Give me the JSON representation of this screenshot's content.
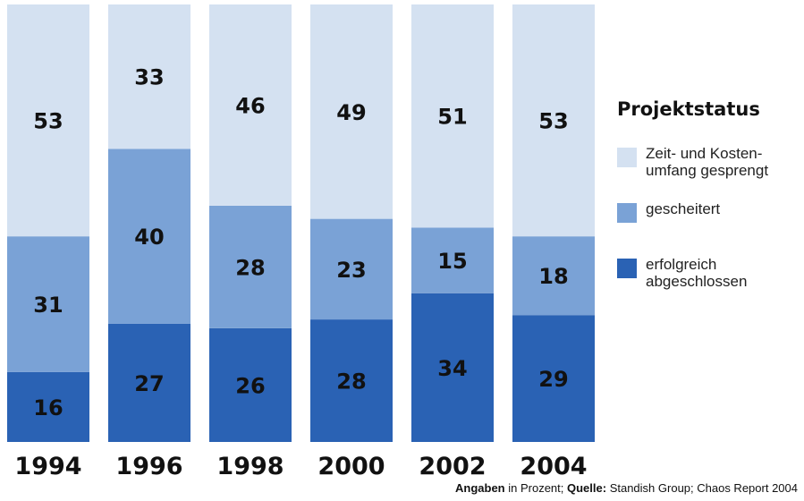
{
  "chart_data": {
    "type": "bar",
    "stacked": true,
    "orientation": "vertical",
    "categories": [
      "1994",
      "1996",
      "1998",
      "2000",
      "2002",
      "2004"
    ],
    "series": [
      {
        "name": "erfolgreich abgeschlossen",
        "color": "#2a62b4",
        "values": [
          16,
          27,
          26,
          28,
          34,
          29
        ]
      },
      {
        "name": "gescheitert",
        "color": "#7aa2d6",
        "values": [
          31,
          40,
          28,
          23,
          15,
          18
        ]
      },
      {
        "name": "Zeit- und Kostenumfang gesprengt",
        "color": "#d4e1f1",
        "values": [
          53,
          33,
          46,
          49,
          51,
          53
        ]
      }
    ],
    "ylim": [
      0,
      100
    ],
    "grid": false,
    "legend_position": "right",
    "legend_title": "Projektstatus",
    "legend": [
      {
        "text_lines": [
          "Zeit- und Kosten-",
          "umfang gesprengt"
        ],
        "color": "#d4e1f1"
      },
      {
        "text_lines": [
          "gescheitert"
        ],
        "color": "#7aa2d6"
      },
      {
        "text_lines": [
          "erfolgreich",
          "abgeschlossen"
        ],
        "color": "#2a62b4"
      }
    ],
    "source": {
      "label1": "Angaben",
      "text1": " in Prozent; ",
      "label2": "Quelle:",
      "text2": " Standish Group; Chaos Report 2004"
    }
  }
}
